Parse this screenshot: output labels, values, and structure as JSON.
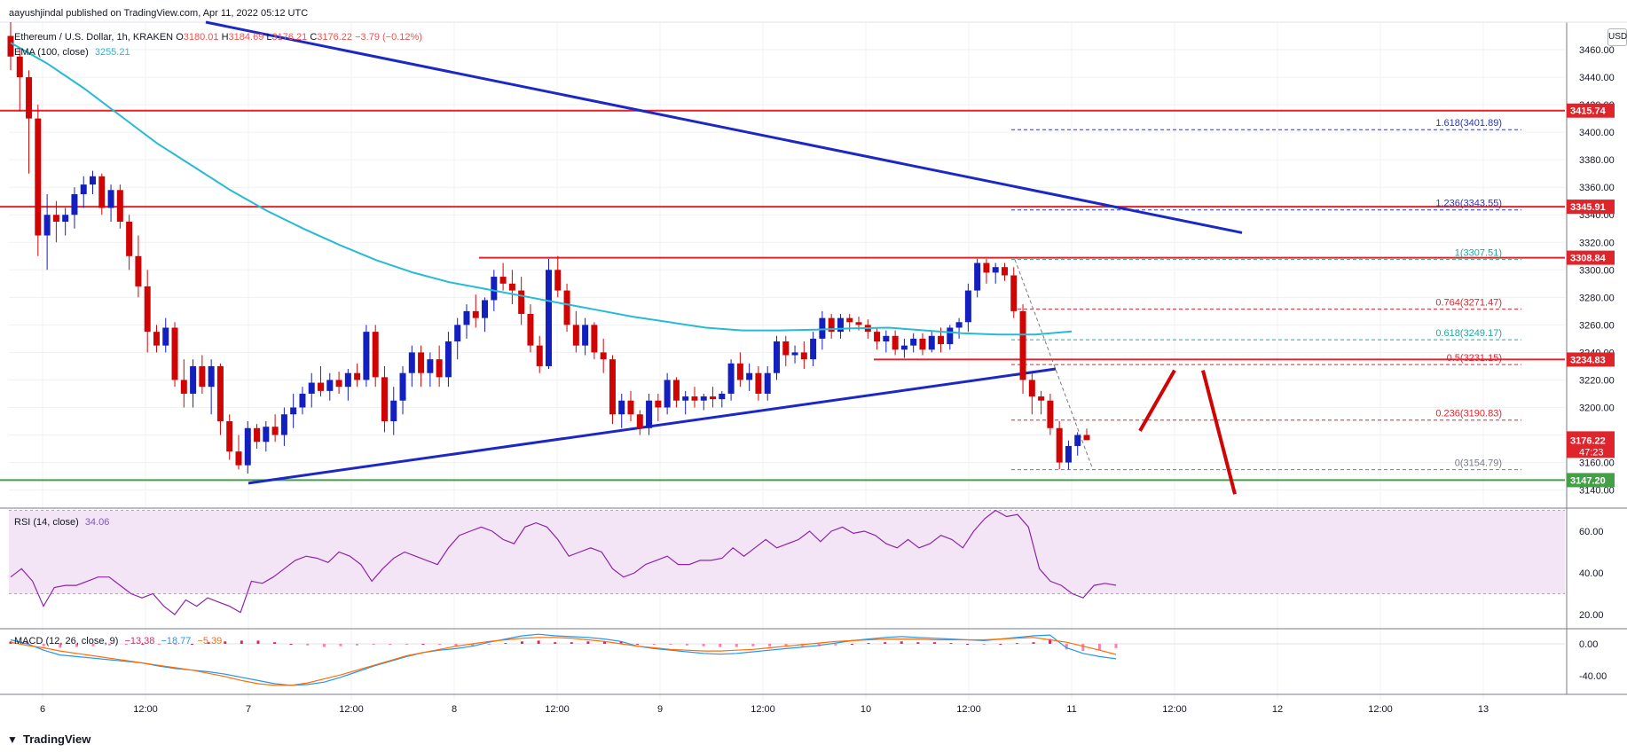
{
  "publisher_line": "aayushjindal published on TradingView.com, Apr 11, 2022 05:12 UTC",
  "currency_button": "USD",
  "footer_brand": "TradingView",
  "legend": {
    "symbol": "Ethereum / U.S. Dollar, 1h, KRAKEN",
    "ohlc": {
      "o": "3180.01",
      "h": "3184.69",
      "l": "3176.21",
      "c": "3176.22",
      "chg": "−3.79 (−0.12%)"
    },
    "ema_label": "EMA (100, close)",
    "ema_value": "3255.21",
    "rsi_label": "RSI (14, close)",
    "rsi_value": "34.06",
    "macd_label": "MACD (12, 26, close, 9)",
    "macd_values": [
      "−13.38",
      "−18.77",
      "−5.39"
    ]
  },
  "colors": {
    "up": "#131fbf",
    "down": "#d10404",
    "ema": "#26bbd4",
    "trend": "#1c28c6",
    "resist": "#e0242c",
    "support": "#43a047",
    "fib_blue": "#2b39b8",
    "fib_red": "#e0242c",
    "fib_green": "#26a69a",
    "rsi_fill": "#f3e5f5",
    "rsi_line": "#8e24aa",
    "macd_line": "#2196f3",
    "signal_line": "#ff6d00",
    "hist_pos": "#e91e63",
    "grid": "#eff1f5"
  },
  "chart_data": [
    {
      "type": "candlestick",
      "title": "Ethereum / U.S. Dollar, 1h, KRAKEN",
      "x_tick_labels": [
        "6",
        "12:00",
        "7",
        "12:00",
        "8",
        "12:00",
        "9",
        "12:00",
        "10",
        "12:00",
        "11",
        "12:00",
        "12",
        "12:00",
        "13"
      ],
      "y_tick_labels": [
        3140,
        3160,
        3180,
        3200,
        3220,
        3240,
        3260,
        3280,
        3300,
        3320,
        3340,
        3360,
        3380,
        3400,
        3420,
        3440,
        3460
      ],
      "ylim": [
        3132,
        3480
      ],
      "candles": [
        [
          3470,
          3480,
          3445,
          3455
        ],
        [
          3455,
          3462,
          3415,
          3440
        ],
        [
          3440,
          3445,
          3370,
          3410
        ],
        [
          3410,
          3420,
          3310,
          3325
        ],
        [
          3325,
          3355,
          3300,
          3340
        ],
        [
          3340,
          3350,
          3320,
          3335
        ],
        [
          3335,
          3345,
          3325,
          3340
        ],
        [
          3340,
          3360,
          3330,
          3355
        ],
        [
          3355,
          3368,
          3345,
          3362
        ],
        [
          3362,
          3372,
          3355,
          3368
        ],
        [
          3368,
          3370,
          3340,
          3345
        ],
        [
          3345,
          3362,
          3335,
          3358
        ],
        [
          3358,
          3362,
          3330,
          3335
        ],
        [
          3335,
          3340,
          3300,
          3310
        ],
        [
          3310,
          3325,
          3280,
          3288
        ],
        [
          3288,
          3300,
          3240,
          3255
        ],
        [
          3255,
          3260,
          3240,
          3245
        ],
        [
          3245,
          3265,
          3240,
          3258
        ],
        [
          3258,
          3262,
          3215,
          3220
        ],
        [
          3220,
          3235,
          3200,
          3210
        ],
        [
          3210,
          3235,
          3200,
          3230
        ],
        [
          3230,
          3238,
          3210,
          3215
        ],
        [
          3215,
          3235,
          3195,
          3230
        ],
        [
          3230,
          3232,
          3180,
          3190
        ],
        [
          3190,
          3195,
          3162,
          3168
        ],
        [
          3168,
          3180,
          3155,
          3158
        ],
        [
          3158,
          3190,
          3152,
          3185
        ],
        [
          3185,
          3188,
          3170,
          3175
        ],
        [
          3175,
          3190,
          3168,
          3186
        ],
        [
          3186,
          3195,
          3175,
          3180
        ],
        [
          3180,
          3200,
          3172,
          3195
        ],
        [
          3195,
          3210,
          3185,
          3200
        ],
        [
          3200,
          3215,
          3195,
          3210
        ],
        [
          3210,
          3225,
          3200,
          3218
        ],
        [
          3218,
          3230,
          3208,
          3212
        ],
        [
          3212,
          3225,
          3205,
          3220
        ],
        [
          3220,
          3226,
          3210,
          3215
        ],
        [
          3215,
          3228,
          3205,
          3225
        ],
        [
          3225,
          3232,
          3215,
          3220
        ],
        [
          3220,
          3260,
          3215,
          3255
        ],
        [
          3255,
          3260,
          3215,
          3222
        ],
        [
          3222,
          3230,
          3182,
          3190
        ],
        [
          3190,
          3215,
          3180,
          3205
        ],
        [
          3205,
          3230,
          3195,
          3225
        ],
        [
          3225,
          3245,
          3215,
          3240
        ],
        [
          3240,
          3245,
          3215,
          3225
        ],
        [
          3225,
          3240,
          3215,
          3235
        ],
        [
          3235,
          3245,
          3215,
          3222
        ],
        [
          3222,
          3255,
          3215,
          3248
        ],
        [
          3248,
          3265,
          3235,
          3260
        ],
        [
          3260,
          3275,
          3250,
          3270
        ],
        [
          3270,
          3282,
          3258,
          3265
        ],
        [
          3265,
          3280,
          3255,
          3278
        ],
        [
          3278,
          3300,
          3270,
          3295
        ],
        [
          3295,
          3305,
          3285,
          3290
        ],
        [
          3290,
          3300,
          3275,
          3285
        ],
        [
          3285,
          3295,
          3260,
          3268
        ],
        [
          3268,
          3275,
          3240,
          3245
        ],
        [
          3245,
          3252,
          3225,
          3230
        ],
        [
          3230,
          3308,
          3228,
          3300
        ],
        [
          3300,
          3310,
          3280,
          3285
        ],
        [
          3285,
          3290,
          3255,
          3260
        ],
        [
          3260,
          3270,
          3240,
          3245
        ],
        [
          3245,
          3265,
          3238,
          3260
        ],
        [
          3260,
          3262,
          3235,
          3240
        ],
        [
          3240,
          3250,
          3225,
          3235
        ],
        [
          3235,
          3238,
          3188,
          3195
        ],
        [
          3195,
          3210,
          3185,
          3205
        ],
        [
          3205,
          3212,
          3190,
          3195
        ],
        [
          3195,
          3198,
          3180,
          3185
        ],
        [
          3185,
          3210,
          3180,
          3205
        ],
        [
          3205,
          3210,
          3190,
          3200
        ],
        [
          3200,
          3225,
          3195,
          3220
        ],
        [
          3220,
          3222,
          3200,
          3205
        ],
        [
          3205,
          3212,
          3195,
          3208
        ],
        [
          3208,
          3215,
          3200,
          3205
        ],
        [
          3205,
          3210,
          3198,
          3208
        ],
        [
          3208,
          3215,
          3200,
          3206
        ],
        [
          3206,
          3212,
          3200,
          3210
        ],
        [
          3210,
          3235,
          3205,
          3232
        ],
        [
          3232,
          3240,
          3215,
          3220
        ],
        [
          3220,
          3232,
          3212,
          3225
        ],
        [
          3225,
          3230,
          3205,
          3210
        ],
        [
          3210,
          3230,
          3205,
          3225
        ],
        [
          3225,
          3252,
          3220,
          3248
        ],
        [
          3248,
          3252,
          3230,
          3238
        ],
        [
          3238,
          3245,
          3232,
          3240
        ],
        [
          3240,
          3248,
          3228,
          3235
        ],
        [
          3235,
          3255,
          3230,
          3250
        ],
        [
          3250,
          3270,
          3242,
          3265
        ],
        [
          3265,
          3268,
          3250,
          3255
        ],
        [
          3255,
          3268,
          3250,
          3265
        ],
        [
          3265,
          3268,
          3255,
          3262
        ],
        [
          3262,
          3266,
          3256,
          3260
        ],
        [
          3260,
          3264,
          3250,
          3255
        ],
        [
          3255,
          3258,
          3242,
          3248
        ],
        [
          3248,
          3256,
          3240,
          3252
        ],
        [
          3252,
          3256,
          3238,
          3242
        ],
        [
          3242,
          3250,
          3236,
          3245
        ],
        [
          3245,
          3254,
          3240,
          3250
        ],
        [
          3250,
          3254,
          3238,
          3242
        ],
        [
          3242,
          3256,
          3240,
          3252
        ],
        [
          3252,
          3258,
          3240,
          3246
        ],
        [
          3246,
          3260,
          3242,
          3258
        ],
        [
          3258,
          3265,
          3250,
          3262
        ],
        [
          3262,
          3290,
          3255,
          3285
        ],
        [
          3285,
          3308,
          3280,
          3305
        ],
        [
          3305,
          3308,
          3290,
          3298
        ],
        [
          3298,
          3305,
          3290,
          3302
        ],
        [
          3302,
          3305,
          3292,
          3296
        ],
        [
          3296,
          3302,
          3265,
          3270
        ],
        [
          3270,
          3275,
          3210,
          3220
        ],
        [
          3220,
          3225,
          3195,
          3208
        ],
        [
          3208,
          3212,
          3195,
          3205
        ],
        [
          3205,
          3210,
          3180,
          3185
        ],
        [
          3185,
          3190,
          3155,
          3160
        ],
        [
          3160,
          3176,
          3155,
          3172
        ],
        [
          3172,
          3182,
          3165,
          3180
        ],
        [
          3180,
          3184.69,
          3176.21,
          3176.22
        ]
      ],
      "ema_100": [
        3465,
        3450,
        3432,
        3412,
        3392,
        3375,
        3358,
        3343,
        3330,
        3318,
        3307,
        3298,
        3291,
        3286,
        3281,
        3276,
        3271,
        3266,
        3262,
        3258,
        3256,
        3256,
        3256.5,
        3257.5,
        3258,
        3256,
        3254,
        3253,
        3253,
        3255.21
      ],
      "price_scale_labels": [
        {
          "value": 3415.74,
          "text": "3415.74"
        },
        {
          "value": 3345.91,
          "text": "3345.91"
        },
        {
          "value": 3308.84,
          "text": "3308.84"
        },
        {
          "value": 3234.83,
          "text": "3234.83"
        },
        {
          "value": 3176.22,
          "text": "3176.22",
          "sub": "47:23"
        },
        {
          "value": 3147.2,
          "text": "3147.20"
        }
      ],
      "horizontal_lines": [
        3415.74,
        3345.91,
        3308.84,
        3234.83,
        3147.2
      ],
      "fib_levels": [
        {
          "ratio": "1.618",
          "value": "3401.89"
        },
        {
          "ratio": "1.236",
          "value": "3343.55"
        },
        {
          "ratio": "1",
          "value": "3307.51"
        },
        {
          "ratio": "0.764",
          "value": "3271.47"
        },
        {
          "ratio": "0.618",
          "value": "3249.17"
        },
        {
          "ratio": "0.5",
          "value": "3231.15"
        },
        {
          "ratio": "0.236",
          "value": "3190.83"
        },
        {
          "ratio": "0",
          "value": "3154.79"
        }
      ]
    },
    {
      "type": "line",
      "title": "RSI (14, close)",
      "y_tick_labels": [
        20.0,
        40.0,
        60.0
      ],
      "bands": [
        30,
        70
      ],
      "values": [
        38,
        42,
        36,
        24,
        33,
        34,
        34,
        36,
        38,
        38,
        34,
        30,
        28,
        30,
        24,
        20,
        27,
        24,
        28,
        26,
        24,
        21,
        36,
        35,
        38,
        42,
        46,
        48,
        47,
        45,
        50,
        48,
        44,
        36,
        42,
        47,
        50,
        48,
        46,
        44,
        52,
        58,
        60,
        62,
        60,
        56,
        54,
        62,
        64,
        62,
        56,
        48,
        50,
        52,
        50,
        42,
        38,
        40,
        44,
        46,
        48,
        44,
        44,
        46,
        46,
        47,
        52,
        48,
        52,
        56,
        52,
        54,
        56,
        60,
        55,
        60,
        62,
        59,
        60,
        58,
        54,
        52,
        56,
        52,
        54,
        58,
        56,
        52,
        60,
        66,
        70,
        67,
        68,
        62,
        42,
        36,
        34,
        30,
        28,
        34,
        35,
        34.06
      ]
    },
    {
      "type": "macd",
      "title": "MACD (12, 26, close, 9)",
      "y_tick_labels": [
        0.0,
        -40.0
      ],
      "macd": [
        5,
        0,
        -8,
        -14,
        -16,
        -18,
        -20,
        -22,
        -24,
        -28,
        -31,
        -33,
        -35,
        -38,
        -42,
        -46,
        -50,
        -52,
        -51,
        -48,
        -42,
        -35,
        -28,
        -22,
        -16,
        -11,
        -8,
        -6,
        -3,
        2,
        6,
        10,
        12,
        10,
        9,
        8,
        6,
        3,
        -3,
        -6,
        -8,
        -10,
        -12,
        -13,
        -12,
        -10,
        -8,
        -6,
        -4,
        -2,
        1,
        4,
        6,
        8,
        9,
        8,
        7,
        6,
        5,
        4,
        6,
        8,
        10,
        11,
        -5,
        -12,
        -16,
        -18.77
      ],
      "signal": [
        2,
        -2,
        -5,
        -9,
        -12,
        -15,
        -18,
        -21,
        -24,
        -27,
        -30,
        -33,
        -37,
        -41,
        -46,
        -50,
        -52,
        -52,
        -49,
        -44,
        -39,
        -33,
        -27,
        -21,
        -15,
        -11,
        -7,
        -3,
        0,
        3,
        5,
        7,
        8,
        8,
        7,
        5,
        3,
        0,
        -3,
        -5,
        -7,
        -8,
        -9,
        -9,
        -8,
        -7,
        -5,
        -3,
        -1,
        1,
        3,
        4,
        5,
        6,
        6,
        6,
        5,
        5,
        5,
        5,
        6,
        7,
        8,
        5,
        2,
        -3,
        -8,
        -13.38
      ],
      "histogram": [
        3,
        2,
        -3,
        -5,
        -4,
        -3,
        -2,
        -1,
        0,
        -1,
        -1,
        0,
        2,
        3,
        4,
        4,
        2,
        0,
        -2,
        -4,
        -3,
        -2,
        -1,
        -1,
        -1,
        0,
        -1,
        -3,
        -3,
        -1,
        1,
        3,
        4,
        2,
        2,
        3,
        3,
        3,
        0,
        -1,
        -1,
        -2,
        -3,
        -4,
        -4,
        -3,
        -3,
        -3,
        -3,
        -3,
        -2,
        0,
        1,
        2,
        3,
        2,
        2,
        1,
        0,
        -1,
        0,
        1,
        2,
        6,
        -7,
        -9,
        -8,
        -5.39
      ]
    }
  ]
}
